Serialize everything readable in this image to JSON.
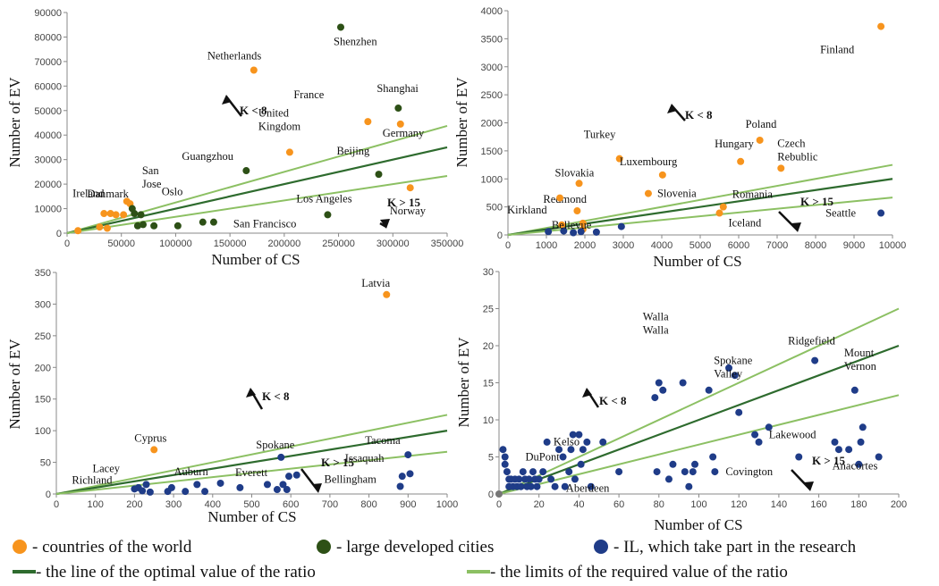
{
  "colors": {
    "country": "#F7941D",
    "city": "#2D5016",
    "il": "#1F3C88",
    "optimal_line": "#2E6B2E",
    "limit_line": "#8CC063",
    "axis": "#888888"
  },
  "legend": {
    "countries": "- countries of the world",
    "cities": "- large developed cities",
    "il": "- IL, which take part in the research",
    "optimal": "- the line of the optimal value of the ratio",
    "limits": "- the limits of the required value of the ratio"
  },
  "chart_data": [
    {
      "type": "scatter",
      "panel": "top-left",
      "xlabel": "Number of CS",
      "ylabel": "Number of EV",
      "xlim": [
        0,
        350000
      ],
      "ylim": [
        0,
        90000
      ],
      "xticks": [
        0,
        50000,
        100000,
        150000,
        200000,
        250000,
        300000,
        350000
      ],
      "yticks": [
        0,
        10000,
        20000,
        30000,
        40000,
        50000,
        60000,
        70000,
        80000,
        90000
      ],
      "ratio_lines": [
        8,
        10,
        15
      ],
      "k_upper": "K < 8",
      "k_lower": "K > 15",
      "series": [
        {
          "group": "country",
          "points": [
            {
              "x": 10000,
              "y": 1000,
              "label": "Ireland"
            },
            {
              "x": 30000,
              "y": 2500,
              "label": "Danmark"
            },
            {
              "x": 37000,
              "y": 2000
            },
            {
              "x": 40000,
              "y": 8000
            },
            {
              "x": 45000,
              "y": 7500
            },
            {
              "x": 52000,
              "y": 7500
            },
            {
              "x": 55000,
              "y": 13000
            },
            {
              "x": 58000,
              "y": 12000
            },
            {
              "x": 34000,
              "y": 8000
            },
            {
              "x": 172000,
              "y": 66500,
              "label": "Netherlands"
            },
            {
              "x": 205000,
              "y": 33000,
              "label": "United\nKingdom"
            },
            {
              "x": 277000,
              "y": 45500,
              "label": "France"
            },
            {
              "x": 307000,
              "y": 44500,
              "label": "Germany"
            },
            {
              "x": 316000,
              "y": 18500,
              "label": "Norway"
            }
          ]
        },
        {
          "group": "city",
          "points": [
            {
              "x": 60000,
              "y": 10000
            },
            {
              "x": 62000,
              "y": 8000
            },
            {
              "x": 65000,
              "y": 3000
            },
            {
              "x": 68000,
              "y": 7500
            },
            {
              "x": 70000,
              "y": 3500
            },
            {
              "x": 80000,
              "y": 3000
            },
            {
              "x": 102000,
              "y": 3000,
              "label": "San\nJose"
            },
            {
              "x": 125000,
              "y": 4500,
              "label": "Oslo"
            },
            {
              "x": 135000,
              "y": 4500,
              "label": "San Francisco"
            },
            {
              "x": 165000,
              "y": 25500,
              "label": "Guangzhou"
            },
            {
              "x": 240000,
              "y": 7500,
              "label": "Los Angeles"
            },
            {
              "x": 252000,
              "y": 84000,
              "label": "Shenzhen"
            },
            {
              "x": 287000,
              "y": 24000,
              "label": "Beijing"
            },
            {
              "x": 305000,
              "y": 51000,
              "label": "Shanghai"
            }
          ]
        }
      ]
    },
    {
      "type": "scatter",
      "panel": "top-right",
      "xlabel": "Number of CS",
      "ylabel": "Number of EV",
      "xlim": [
        0,
        10000
      ],
      "ylim": [
        0,
        4000
      ],
      "xticks": [
        0,
        1000,
        2000,
        3000,
        4000,
        5000,
        6000,
        7000,
        8000,
        9000,
        10000
      ],
      "yticks": [
        0,
        500,
        1000,
        1500,
        2000,
        2500,
        3000,
        3500,
        4000
      ],
      "ratio_lines": [
        8,
        10,
        15
      ],
      "k_upper": "K < 8",
      "k_lower": "K > 15",
      "series": [
        {
          "group": "country",
          "points": [
            {
              "x": 9700,
              "y": 3720,
              "label": "Finland"
            },
            {
              "x": 6550,
              "y": 1690,
              "label": "Poland"
            },
            {
              "x": 6050,
              "y": 1310,
              "label": "Hungary"
            },
            {
              "x": 7100,
              "y": 1190,
              "label": "Czech\nRebublic"
            },
            {
              "x": 2900,
              "y": 1360,
              "label": "Turkey"
            },
            {
              "x": 4020,
              "y": 1070,
              "label": "Luxembourg"
            },
            {
              "x": 1850,
              "y": 920,
              "label": "Slovakia"
            },
            {
              "x": 3650,
              "y": 740,
              "label": "Slovenia"
            },
            {
              "x": 5600,
              "y": 500,
              "label": "Romania"
            },
            {
              "x": 5500,
              "y": 390,
              "label": "Iceland"
            },
            {
              "x": 1800,
              "y": 430,
              "label": "Redmond"
            },
            {
              "x": 1350,
              "y": 660
            },
            {
              "x": 1400,
              "y": 180
            },
            {
              "x": 1950,
              "y": 210
            },
            {
              "x": 1950,
              "y": 100
            }
          ]
        },
        {
          "group": "il",
          "points": [
            {
              "x": 1050,
              "y": 60,
              "label": "Kirkland"
            },
            {
              "x": 1450,
              "y": 70
            },
            {
              "x": 1700,
              "y": 40
            },
            {
              "x": 1900,
              "y": 60
            },
            {
              "x": 2300,
              "y": 50,
              "label": "Bellevue"
            },
            {
              "x": 2950,
              "y": 150
            },
            {
              "x": 9700,
              "y": 390,
              "label": "Seattle"
            }
          ]
        }
      ]
    },
    {
      "type": "scatter",
      "panel": "bottom-left",
      "xlabel": "Number of CS",
      "ylabel": "Number of EV",
      "xlim": [
        0,
        1000
      ],
      "ylim": [
        0,
        350
      ],
      "xticks": [
        0,
        100,
        200,
        300,
        400,
        500,
        600,
        700,
        800,
        900,
        1000
      ],
      "yticks": [
        0,
        50,
        100,
        150,
        200,
        250,
        300,
        350
      ],
      "ratio_lines": [
        8,
        10,
        15
      ],
      "k_upper": "K < 8",
      "k_lower": "K > 15",
      "series": [
        {
          "group": "country",
          "points": [
            {
              "x": 845,
              "y": 315,
              "label": "Latvia"
            },
            {
              "x": 250,
              "y": 70,
              "label": "Cyprus"
            }
          ]
        },
        {
          "group": "il",
          "points": [
            {
              "x": 200,
              "y": 8,
              "label": "Richland"
            },
            {
              "x": 210,
              "y": 10
            },
            {
              "x": 220,
              "y": 5
            },
            {
              "x": 230,
              "y": 15,
              "label": "Lacey"
            },
            {
              "x": 240,
              "y": 3
            },
            {
              "x": 285,
              "y": 4
            },
            {
              "x": 295,
              "y": 10
            },
            {
              "x": 330,
              "y": 4
            },
            {
              "x": 360,
              "y": 15
            },
            {
              "x": 380,
              "y": 4
            },
            {
              "x": 420,
              "y": 17,
              "label": "Auburn"
            },
            {
              "x": 470,
              "y": 10
            },
            {
              "x": 540,
              "y": 15
            },
            {
              "x": 565,
              "y": 7
            },
            {
              "x": 575,
              "y": 58,
              "label": "Spokane"
            },
            {
              "x": 580,
              "y": 15
            },
            {
              "x": 590,
              "y": 7
            },
            {
              "x": 595,
              "y": 28,
              "label": "Everett"
            },
            {
              "x": 615,
              "y": 30
            },
            {
              "x": 880,
              "y": 12,
              "label": "Bellingham"
            },
            {
              "x": 885,
              "y": 28,
              "label": "Issaquah"
            },
            {
              "x": 900,
              "y": 62,
              "label": "Tacoma"
            },
            {
              "x": 905,
              "y": 32
            }
          ]
        }
      ]
    },
    {
      "type": "scatter",
      "panel": "bottom-right",
      "xlabel": "Number of CS",
      "ylabel": "Number of EV",
      "xlim": [
        0,
        200
      ],
      "ylim": [
        0,
        30
      ],
      "xticks": [
        0,
        20,
        40,
        60,
        80,
        100,
        120,
        140,
        160,
        180,
        200
      ],
      "yticks": [
        0,
        5,
        10,
        15,
        20,
        25,
        30
      ],
      "ratio_lines": [
        8,
        10,
        15
      ],
      "k_upper": "K < 8",
      "k_lower": "K > 15",
      "zero_point": {
        "x": 0,
        "y": 0
      },
      "series": [
        {
          "group": "il",
          "points": [
            {
              "x": 2,
              "y": 6
            },
            {
              "x": 3,
              "y": 5
            },
            {
              "x": 3,
              "y": 4
            },
            {
              "x": 4,
              "y": 3
            },
            {
              "x": 5,
              "y": 2
            },
            {
              "x": 5,
              "y": 1
            },
            {
              "x": 6,
              "y": 2
            },
            {
              "x": 7,
              "y": 1
            },
            {
              "x": 8,
              "y": 2
            },
            {
              "x": 9,
              "y": 1
            },
            {
              "x": 10,
              "y": 2
            },
            {
              "x": 11,
              "y": 1
            },
            {
              "x": 12,
              "y": 3
            },
            {
              "x": 13,
              "y": 2
            },
            {
              "x": 14,
              "y": 1
            },
            {
              "x": 15,
              "y": 2
            },
            {
              "x": 16,
              "y": 1
            },
            {
              "x": 17,
              "y": 3
            },
            {
              "x": 18,
              "y": 2
            },
            {
              "x": 19,
              "y": 1
            },
            {
              "x": 20,
              "y": 2
            },
            {
              "x": 22,
              "y": 3
            },
            {
              "x": 24,
              "y": 7
            },
            {
              "x": 26,
              "y": 2
            },
            {
              "x": 28,
              "y": 1
            },
            {
              "x": 30,
              "y": 6
            },
            {
              "x": 32,
              "y": 5,
              "label": "DuPont"
            },
            {
              "x": 33,
              "y": 1
            },
            {
              "x": 35,
              "y": 3
            },
            {
              "x": 36,
              "y": 6
            },
            {
              "x": 37,
              "y": 8
            },
            {
              "x": 38,
              "y": 2,
              "label": "Kelso"
            },
            {
              "x": 40,
              "y": 8
            },
            {
              "x": 41,
              "y": 4
            },
            {
              "x": 42,
              "y": 6
            },
            {
              "x": 44,
              "y": 7
            },
            {
              "x": 46,
              "y": 1,
              "label": "Aberdeen"
            },
            {
              "x": 52,
              "y": 7
            },
            {
              "x": 60,
              "y": 3
            },
            {
              "x": 78,
              "y": 13
            },
            {
              "x": 79,
              "y": 3
            },
            {
              "x": 80,
              "y": 15,
              "label": "Walla\nWalla"
            },
            {
              "x": 82,
              "y": 14
            },
            {
              "x": 85,
              "y": 2
            },
            {
              "x": 87,
              "y": 4
            },
            {
              "x": 92,
              "y": 15
            },
            {
              "x": 93,
              "y": 3
            },
            {
              "x": 95,
              "y": 1
            },
            {
              "x": 97,
              "y": 3
            },
            {
              "x": 98,
              "y": 4
            },
            {
              "x": 105,
              "y": 14
            },
            {
              "x": 107,
              "y": 5
            },
            {
              "x": 108,
              "y": 3,
              "label": "Covington"
            },
            {
              "x": 115,
              "y": 17
            },
            {
              "x": 118,
              "y": 16
            },
            {
              "x": 120,
              "y": 11,
              "label": "Spokane\nValley"
            },
            {
              "x": 128,
              "y": 8
            },
            {
              "x": 130,
              "y": 7
            },
            {
              "x": 135,
              "y": 9,
              "label": "Lakewood"
            },
            {
              "x": 150,
              "y": 5
            },
            {
              "x": 158,
              "y": 18,
              "label": "Ridgefield"
            },
            {
              "x": 168,
              "y": 7
            },
            {
              "x": 170,
              "y": 6
            },
            {
              "x": 175,
              "y": 6
            },
            {
              "x": 178,
              "y": 14,
              "label": "Mount\nVernon"
            },
            {
              "x": 180,
              "y": 4
            },
            {
              "x": 181,
              "y": 7
            },
            {
              "x": 182,
              "y": 9
            },
            {
              "x": 190,
              "y": 5,
              "label": "Anacortes"
            }
          ]
        }
      ]
    }
  ]
}
